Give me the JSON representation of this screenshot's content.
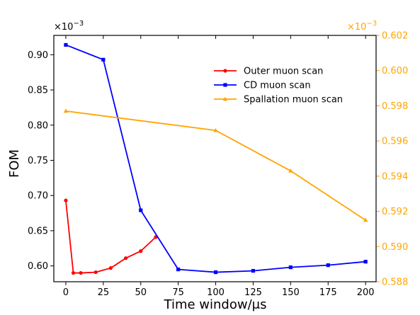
{
  "chart_data": {
    "type": "line",
    "xlabel": "Time window/μs",
    "ylabel": "FOM",
    "x_ticks": [
      0,
      25,
      50,
      75,
      100,
      125,
      150,
      175,
      200
    ],
    "xlim": [
      -8,
      207
    ],
    "left_axis": {
      "ylim": [
        0.5775,
        0.9275
      ],
      "ticks": [
        0.6,
        0.65,
        0.7,
        0.75,
        0.8,
        0.85,
        0.9
      ],
      "tick_labels": [
        "0.60",
        "0.65",
        "0.70",
        "0.75",
        "0.80",
        "0.85",
        "0.90"
      ],
      "multiplier": "×10",
      "multiplier_exp": "−3",
      "color": "#000000"
    },
    "right_axis": {
      "ylim": [
        0.588,
        0.602
      ],
      "ticks": [
        0.588,
        0.59,
        0.592,
        0.594,
        0.596,
        0.598,
        0.6,
        0.602
      ],
      "tick_labels": [
        "0.588",
        "0.590",
        "0.592",
        "0.594",
        "0.596",
        "0.598",
        "0.600",
        "0.602"
      ],
      "multiplier": "×10",
      "multiplier_exp": "−3",
      "color": "#FFA500"
    },
    "series": [
      {
        "name": "Outer muon scan",
        "color": "#FF0000",
        "marker": "circle",
        "axis": "left",
        "x": [
          0,
          5,
          10,
          20,
          30,
          40,
          50,
          60
        ],
        "values": [
          0.693,
          0.59,
          0.59,
          0.591,
          0.597,
          0.611,
          0.621,
          0.641
        ]
      },
      {
        "name": "CD muon scan",
        "color": "#0000FF",
        "marker": "square",
        "axis": "left",
        "x": [
          0,
          25,
          50,
          75,
          100,
          125,
          150,
          175,
          200
        ],
        "values": [
          0.914,
          0.893,
          0.679,
          0.595,
          0.591,
          0.593,
          0.598,
          0.601,
          0.606
        ]
      },
      {
        "name": "Spallation muon scan",
        "color": "#FFA500",
        "marker": "triangle",
        "axis": "right",
        "x": [
          0,
          100,
          150,
          200
        ],
        "values": [
          0.5977,
          0.5966,
          0.5943,
          0.5915
        ]
      }
    ],
    "legend_position": "upper-right"
  }
}
